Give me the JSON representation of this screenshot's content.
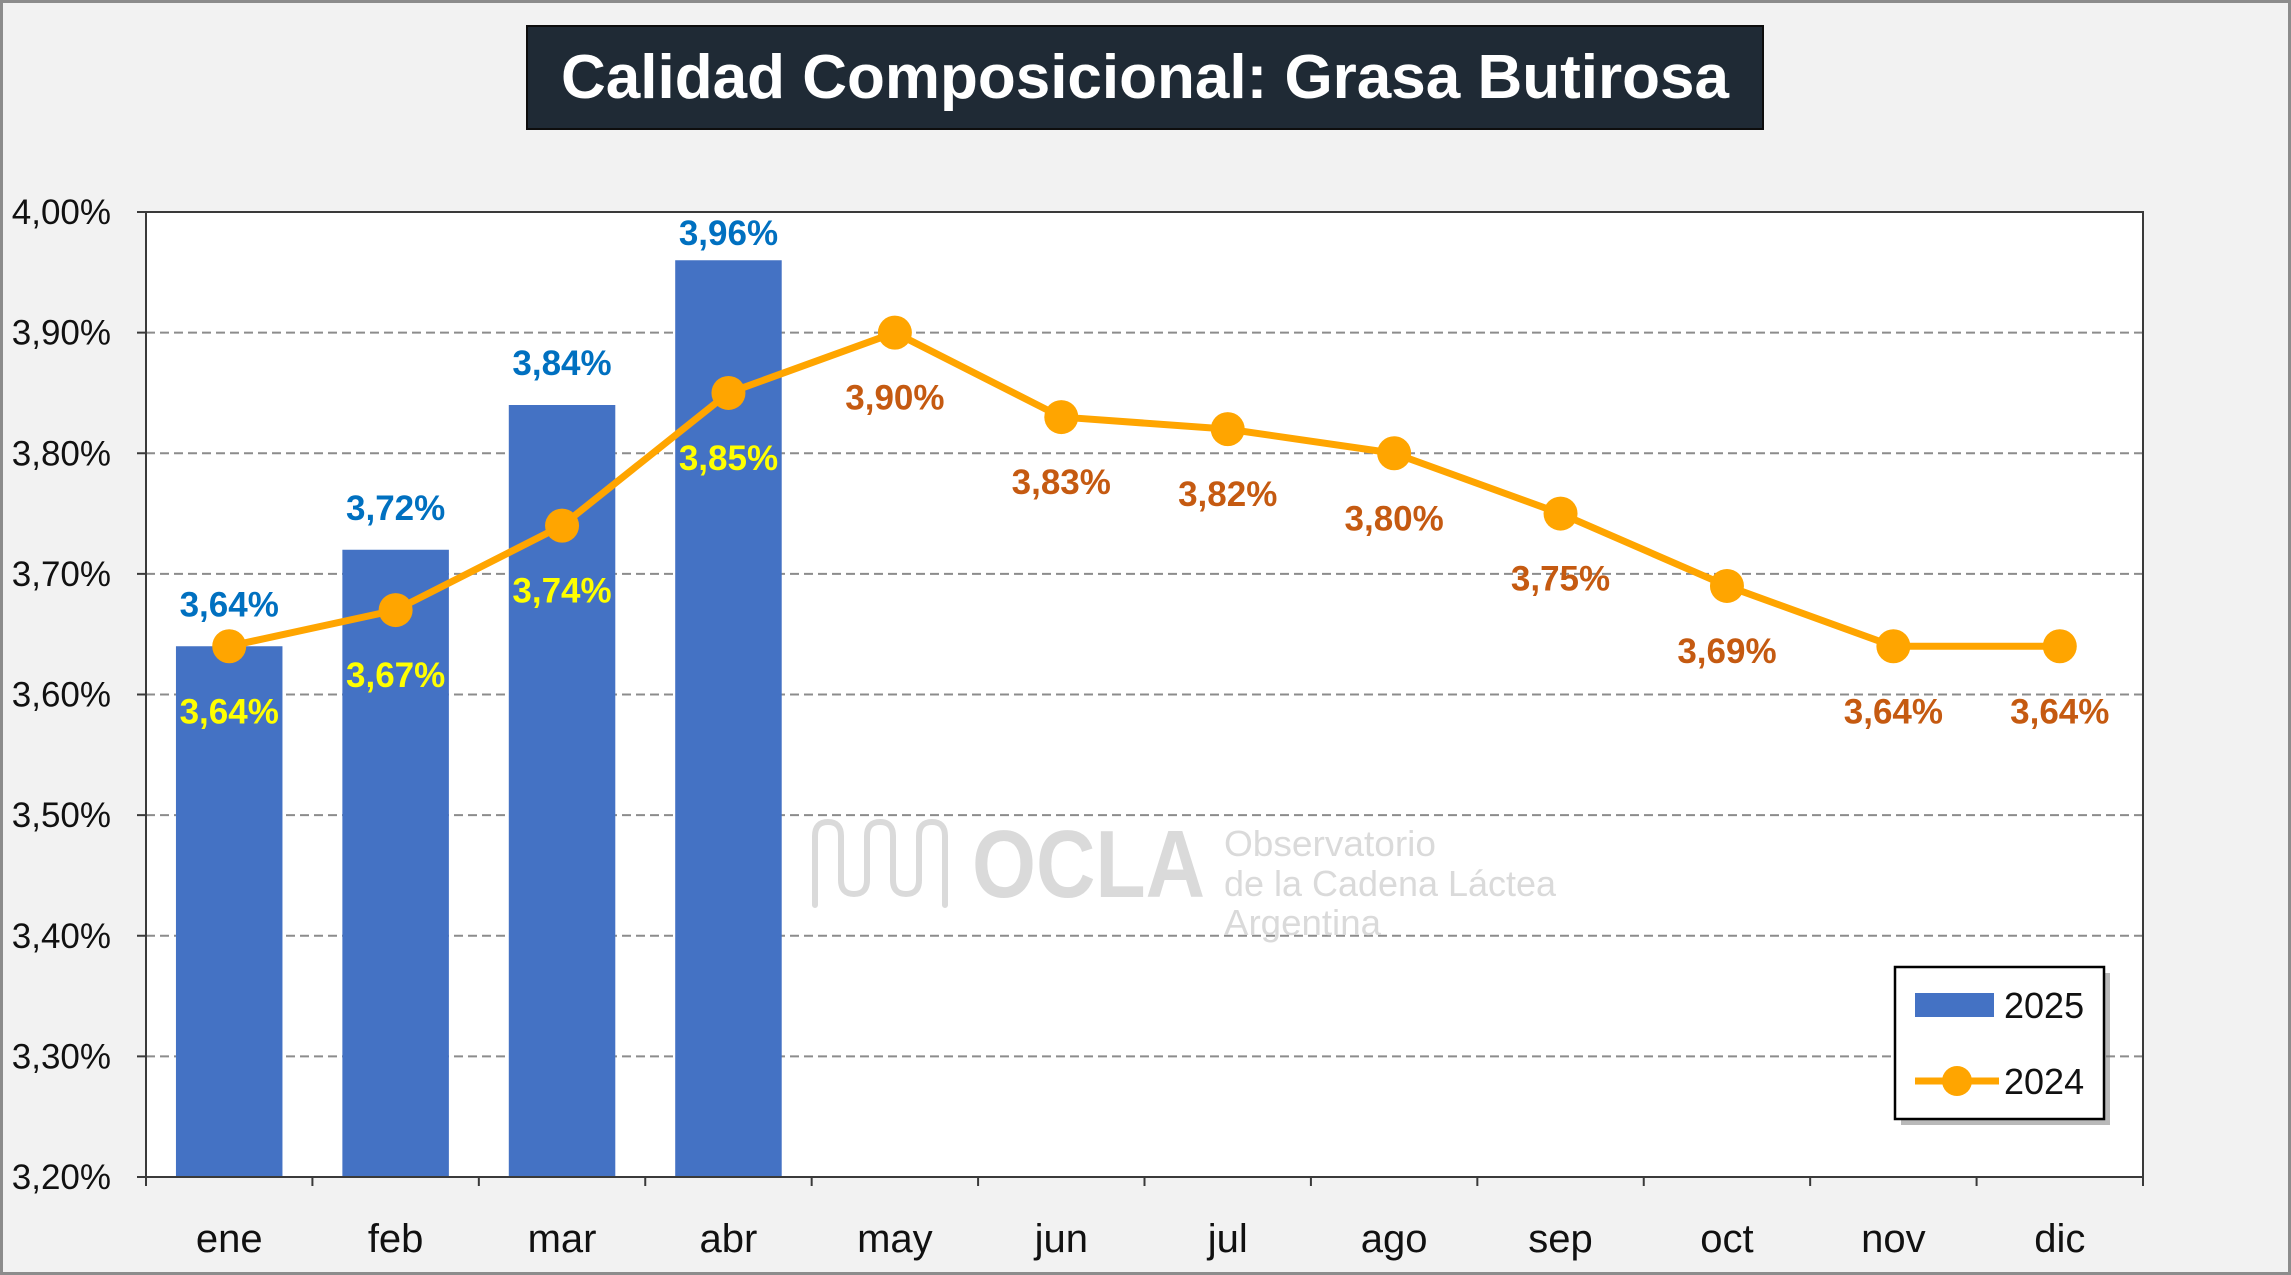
{
  "colors": {
    "page_background": "#f2f2f2",
    "title_background": "#1f2a35",
    "title_text": "#ffffff",
    "watermark": "#d6d6d6"
  },
  "watermark": {
    "logo_text": "OCLA",
    "line_1": "Observatorio",
    "line_2": "de la Cadena Láctea",
    "line_3": "Argentina"
  },
  "chart_data": {
    "type": "bar",
    "title": "Calidad Composicional: Grasa Butirosa",
    "categories": [
      "ene",
      "feb",
      "mar",
      "abr",
      "may",
      "jun",
      "jul",
      "ago",
      "sep",
      "oct",
      "nov",
      "dic"
    ],
    "ylim": [
      3.2,
      4.0
    ],
    "yticks": [
      3.2,
      3.3,
      3.4,
      3.5,
      3.6,
      3.7,
      3.8,
      3.9,
      4.0
    ],
    "yticklabels": [
      "3,20%",
      "3,30%",
      "3,40%",
      "3,50%",
      "3,60%",
      "3,70%",
      "3,80%",
      "3,90%",
      "4,00%"
    ],
    "grid": true,
    "legend_position": "bottom-right",
    "series": [
      {
        "name": "2025",
        "type": "bar",
        "color": "#4472c4",
        "label_color": "#0070c0",
        "label_position": "above",
        "values": [
          3.64,
          3.72,
          3.84,
          3.96,
          null,
          null,
          null,
          null,
          null,
          null,
          null,
          null
        ],
        "labels": [
          "3,64%",
          "3,72%",
          "3,84%",
          "3,96%",
          null,
          null,
          null,
          null,
          null,
          null,
          null,
          null
        ]
      },
      {
        "name": "2024",
        "type": "line",
        "color": "#ffa500",
        "label_color": "#c55a11",
        "label_color_over_bar": "#ffff00",
        "label_position": "below",
        "values": [
          3.64,
          3.67,
          3.74,
          3.85,
          3.9,
          3.83,
          3.82,
          3.8,
          3.75,
          3.69,
          3.64,
          3.64
        ],
        "labels": [
          "3,64%",
          "3,67%",
          "3,74%",
          "3,85%",
          "3,90%",
          "3,83%",
          "3,82%",
          "3,80%",
          "3,75%",
          "3,69%",
          "3,64%",
          "3,64%"
        ]
      }
    ]
  }
}
